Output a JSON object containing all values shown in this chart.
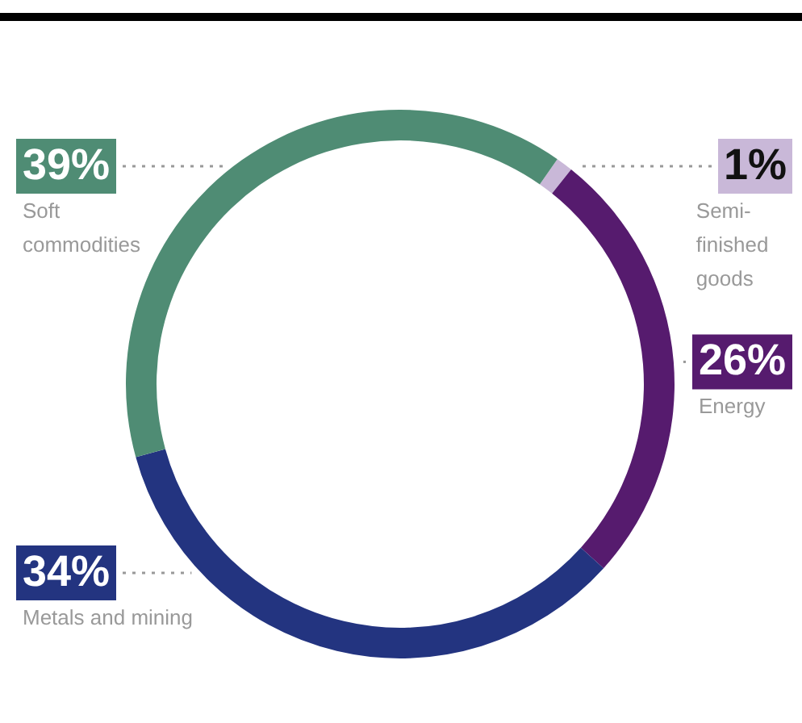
{
  "chart_data": {
    "type": "donut",
    "categories": [
      "Semi-finished goods",
      "Energy",
      "Metals and mining",
      "Soft commodities"
    ],
    "values": [
      1,
      26,
      34,
      39
    ],
    "colors": [
      "#c9b8d8",
      "#561b6e",
      "#233480",
      "#4f8c74"
    ],
    "value_labels": [
      "1%",
      "26%",
      "34%",
      "39%"
    ]
  }
}
